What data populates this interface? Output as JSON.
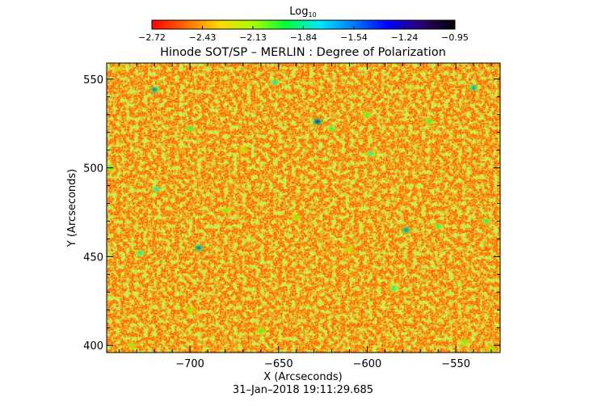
{
  "chart_data": {
    "type": "heatmap",
    "title": "Hinode SOT/SP – MERLIN : Degree of Polarization",
    "xlabel": "X (Arcseconds)",
    "ylabel": "Y (Arcseconds)",
    "footer": "31–Jan–2018 19:11:29.685",
    "xlim": [
      -747,
      -525
    ],
    "ylim": [
      396,
      559
    ],
    "x_ticks": [
      -700,
      -650,
      -600,
      -550
    ],
    "x_tick_labels": [
      "−700",
      "−650",
      "−600",
      "−550"
    ],
    "y_ticks": [
      400,
      450,
      500,
      550
    ],
    "y_tick_labels": [
      "400",
      "450",
      "500",
      "550"
    ],
    "colorbar": {
      "label_base": "Log",
      "label_sub": "10",
      "range": [
        -2.72,
        -0.95
      ],
      "ticks": [
        "−2.72",
        "−2.43",
        "−2.13",
        "−1.84",
        "−1.54",
        "−1.24",
        "−0.95"
      ],
      "colormap": [
        "#ff0000",
        "#ff6a00",
        "#ffd800",
        "#a8ff00",
        "#00ff3c",
        "#00e6ff",
        "#0078ff",
        "#0000ff",
        "#2a0070",
        "#000000"
      ]
    },
    "background_color": "#ff5a14",
    "hotspots": [
      {
        "x": -628,
        "y": 526,
        "v": -1.35
      },
      {
        "x": -720,
        "y": 544,
        "v": -1.5
      },
      {
        "x": -695,
        "y": 455,
        "v": -1.45
      },
      {
        "x": -578,
        "y": 465,
        "v": -1.5
      },
      {
        "x": -540,
        "y": 545,
        "v": -1.55
      },
      {
        "x": -652,
        "y": 548,
        "v": -1.7
      },
      {
        "x": -728,
        "y": 452,
        "v": -1.7
      },
      {
        "x": -719,
        "y": 488,
        "v": -1.7
      },
      {
        "x": -598,
        "y": 508,
        "v": -1.8
      },
      {
        "x": -585,
        "y": 432,
        "v": -1.8
      },
      {
        "x": -560,
        "y": 467,
        "v": -1.85
      },
      {
        "x": -533,
        "y": 470,
        "v": -1.85
      },
      {
        "x": -700,
        "y": 522,
        "v": -1.85
      },
      {
        "x": -620,
        "y": 522,
        "v": -1.85
      },
      {
        "x": -565,
        "y": 526,
        "v": -1.9
      },
      {
        "x": -660,
        "y": 408,
        "v": -1.95
      },
      {
        "x": -745,
        "y": 500,
        "v": -1.95
      },
      {
        "x": -600,
        "y": 530,
        "v": -1.95
      },
      {
        "x": -680,
        "y": 476,
        "v": -2.0
      },
      {
        "x": -640,
        "y": 472,
        "v": -2.05
      },
      {
        "x": -700,
        "y": 420,
        "v": -2.05
      },
      {
        "x": -545,
        "y": 402,
        "v": -2.0
      },
      {
        "x": -733,
        "y": 400,
        "v": -2.05
      },
      {
        "x": -530,
        "y": 398,
        "v": -2.05
      },
      {
        "x": -610,
        "y": 454,
        "v": -2.1
      },
      {
        "x": -670,
        "y": 510,
        "v": -2.1
      },
      {
        "x": -588,
        "y": 560,
        "v": -2.1
      },
      {
        "x": -740,
        "y": 556,
        "v": -2.15
      }
    ]
  }
}
